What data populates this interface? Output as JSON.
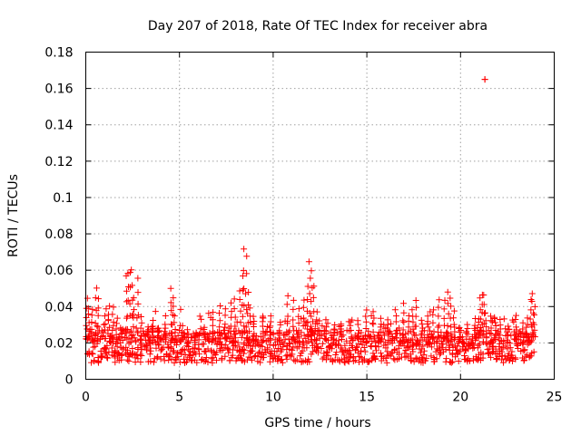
{
  "chart_data": {
    "type": "scatter",
    "title": "Day 207 of 2018, Rate Of TEC Index for receiver abra",
    "xlabel": "GPS time / hours",
    "ylabel": "ROTI / TECUs",
    "xlim": [
      0,
      25
    ],
    "ylim": [
      0,
      0.18
    ],
    "x_ticks": [
      "0",
      "5",
      "10",
      "15",
      "20",
      "25"
    ],
    "y_ticks": [
      "0",
      "0.02",
      "0.04",
      "0.06",
      "0.08",
      "0.1",
      "0.12",
      "0.14",
      "0.16",
      "0.18"
    ],
    "grid": true,
    "marker": "+",
    "color": "#ff0000",
    "series": [
      {
        "x": [
          0.0,
          0.1,
          0.2,
          0.3,
          0.4,
          0.5,
          0.6,
          0.7,
          0.8,
          0.9,
          1.0,
          1.1,
          1.2,
          1.3,
          1.4,
          1.5,
          1.6,
          1.7,
          1.8,
          1.9,
          2.0,
          2.1,
          2.2,
          2.3,
          2.4,
          2.5,
          2.6,
          2.7,
          2.8,
          2.9,
          3.0,
          3.1,
          3.2,
          3.3,
          3.4,
          3.5,
          3.6,
          3.7,
          3.8,
          3.9,
          4.0,
          4.1,
          4.2,
          4.3,
          4.4,
          4.5,
          4.6,
          4.7,
          4.8,
          4.9,
          5.0,
          5.1,
          5.2,
          5.3,
          5.4,
          5.5,
          5.6,
          5.7,
          5.8,
          5.9,
          6.0,
          6.1,
          6.2,
          6.3,
          6.4,
          6.5,
          6.6,
          6.7,
          6.8,
          6.9,
          7.0,
          7.1,
          7.2,
          7.3,
          7.4,
          7.5,
          7.6,
          7.7,
          7.8,
          7.9,
          8.0,
          8.1,
          8.2,
          8.3,
          8.4,
          8.5,
          8.6,
          8.7,
          8.8,
          8.9,
          9.0,
          9.1,
          9.2,
          9.3,
          9.4,
          9.5,
          9.6,
          9.7,
          9.8,
          9.9,
          10.0,
          10.1,
          10.2,
          10.3,
          10.4,
          10.5,
          10.6,
          10.7,
          10.8,
          10.9,
          11.0,
          11.1,
          11.2,
          11.3,
          11.4,
          11.5,
          11.6,
          11.7,
          11.8,
          11.9,
          12.0,
          12.1,
          12.2,
          12.3,
          12.4,
          12.5,
          12.6,
          12.7,
          12.8,
          12.9,
          13.0,
          13.1,
          13.2,
          13.3,
          13.4,
          13.5,
          13.6,
          13.7,
          13.8,
          13.9,
          14.0,
          14.1,
          14.2,
          14.3,
          14.4,
          14.5,
          14.6,
          14.7,
          14.8,
          14.9,
          15.0,
          15.1,
          15.2,
          15.3,
          15.4,
          15.5,
          15.6,
          15.7,
          15.8,
          15.9,
          16.0,
          16.1,
          16.2,
          16.3,
          16.4,
          16.5,
          16.6,
          16.7,
          16.8,
          16.9,
          17.0,
          17.1,
          17.2,
          17.3,
          17.4,
          17.5,
          17.6,
          17.7,
          17.8,
          17.9,
          18.0,
          18.1,
          18.2,
          18.3,
          18.4,
          18.5,
          18.6,
          18.7,
          18.8,
          18.9,
          19.0,
          19.1,
          19.2,
          19.3,
          19.4,
          19.5,
          19.6,
          19.7,
          19.8,
          19.9,
          20.0,
          20.1,
          20.2,
          20.3,
          20.4,
          20.5,
          20.6,
          20.7,
          20.8,
          20.9,
          21.0,
          21.1,
          21.2,
          21.3,
          21.4,
          21.5,
          21.6,
          21.7,
          21.8,
          21.9,
          22.0,
          22.1,
          22.2,
          22.3,
          22.4,
          22.5,
          22.6,
          22.7,
          22.8,
          22.9,
          23.0,
          23.1,
          23.2,
          23.3,
          23.4,
          23.5,
          23.6,
          23.7,
          23.8,
          23.9,
          0.05,
          0.15,
          0.35,
          0.55,
          0.65,
          1.05,
          1.25,
          1.45,
          1.65,
          1.85,
          2.15,
          2.25,
          2.35,
          2.45,
          2.55,
          2.75,
          2.95,
          3.35,
          3.55,
          3.85,
          4.25,
          4.55,
          4.65,
          4.75,
          5.15,
          5.45,
          5.85,
          6.35,
          6.75,
          7.15,
          7.45,
          7.75,
          7.95,
          8.25,
          8.35,
          8.45,
          8.55,
          8.65,
          8.75,
          8.95,
          9.45,
          9.85,
          10.35,
          10.75,
          11.05,
          11.35,
          11.65,
          11.85,
          11.95,
          12.05,
          12.15,
          12.35,
          12.85,
          13.25,
          13.65,
          14.15,
          14.55,
          14.95,
          15.35,
          15.75,
          16.15,
          16.55,
          16.95,
          17.25,
          17.45,
          17.65,
          17.95,
          18.25,
          18.55,
          18.85,
          19.15,
          19.35,
          19.45,
          19.65,
          19.95,
          20.35,
          20.75,
          20.95,
          21.05,
          21.15,
          21.25,
          21.35,
          21.65,
          21.85,
          22.15,
          22.55,
          22.95,
          23.35,
          23.55,
          23.75,
          23.85,
          23.95,
          21.3
        ]
      }
    ]
  }
}
